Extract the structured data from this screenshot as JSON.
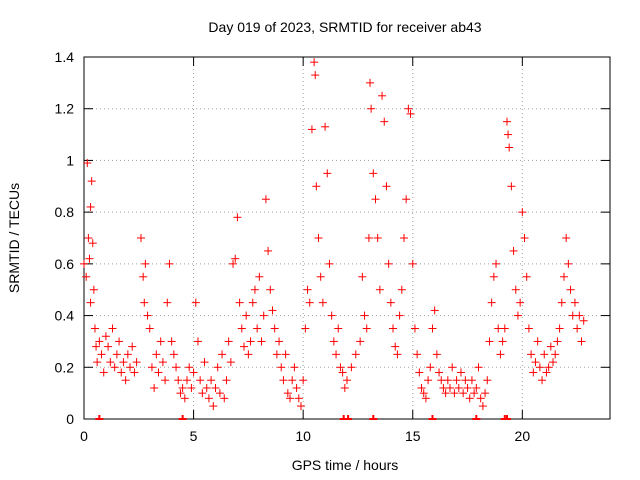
{
  "chart_data": {
    "type": "scatter",
    "title": "Day 019 of 2023, SRMTID for receiver ab43",
    "xlabel": "GPS time / hours",
    "ylabel": "SRMTID / TECUs",
    "xlim": [
      0,
      24
    ],
    "ylim": [
      0,
      1.4
    ],
    "xticks": [
      0,
      5,
      10,
      15,
      20
    ],
    "xtick_labels": [
      "0",
      "5",
      "10",
      "15",
      "20"
    ],
    "yticks": [
      0,
      0.2,
      0.4,
      0.6,
      0.8,
      1.0,
      1.2,
      1.4
    ],
    "ytick_labels": [
      "0",
      "0.2",
      "0.4",
      "0.6",
      "0.8",
      "1",
      "1.2",
      "1.4"
    ],
    "grid": true,
    "marker": "+",
    "color": "#ff0000",
    "series": [
      {
        "name": "SRMTID",
        "points": [
          [
            0.0,
            0.6
          ],
          [
            0.1,
            0.55
          ],
          [
            0.15,
            0.99
          ],
          [
            0.2,
            0.7
          ],
          [
            0.25,
            0.62
          ],
          [
            0.3,
            0.45
          ],
          [
            0.3,
            0.82
          ],
          [
            0.35,
            0.92
          ],
          [
            0.4,
            0.68
          ],
          [
            0.45,
            0.5
          ],
          [
            0.5,
            0.35
          ],
          [
            0.55,
            0.28
          ],
          [
            0.6,
            0.22
          ],
          [
            0.7,
            0.3
          ],
          [
            0.8,
            0.25
          ],
          [
            0.9,
            0.18
          ],
          [
            1.0,
            0.32
          ],
          [
            1.1,
            0.28
          ],
          [
            1.2,
            0.22
          ],
          [
            1.3,
            0.35
          ],
          [
            1.4,
            0.2
          ],
          [
            1.5,
            0.25
          ],
          [
            1.6,
            0.3
          ],
          [
            1.7,
            0.18
          ],
          [
            1.8,
            0.22
          ],
          [
            1.9,
            0.15
          ],
          [
            2.0,
            0.25
          ],
          [
            2.1,
            0.2
          ],
          [
            2.2,
            0.28
          ],
          [
            2.3,
            0.18
          ],
          [
            2.4,
            0.22
          ],
          [
            2.6,
            0.7
          ],
          [
            2.7,
            0.55
          ],
          [
            2.75,
            0.45
          ],
          [
            2.8,
            0.6
          ],
          [
            2.9,
            0.4
          ],
          [
            3.0,
            0.35
          ],
          [
            3.1,
            0.2
          ],
          [
            3.2,
            0.12
          ],
          [
            3.3,
            0.25
          ],
          [
            3.4,
            0.18
          ],
          [
            3.5,
            0.3
          ],
          [
            3.6,
            0.22
          ],
          [
            3.7,
            0.15
          ],
          [
            3.8,
            0.45
          ],
          [
            3.9,
            0.6
          ],
          [
            4.0,
            0.3
          ],
          [
            4.1,
            0.25
          ],
          [
            4.2,
            0.2
          ],
          [
            4.3,
            0.15
          ],
          [
            4.4,
            0.1
          ],
          [
            4.5,
            0.12
          ],
          [
            4.6,
            0.08
          ],
          [
            4.7,
            0.15
          ],
          [
            4.8,
            0.2
          ],
          [
            4.9,
            0.12
          ],
          [
            5.0,
            0.18
          ],
          [
            5.1,
            0.45
          ],
          [
            5.2,
            0.3
          ],
          [
            5.3,
            0.15
          ],
          [
            5.4,
            0.1
          ],
          [
            5.5,
            0.22
          ],
          [
            5.6,
            0.12
          ],
          [
            5.7,
            0.08
          ],
          [
            5.8,
            0.15
          ],
          [
            5.9,
            0.05
          ],
          [
            6.0,
            0.12
          ],
          [
            6.1,
            0.2
          ],
          [
            6.2,
            0.1
          ],
          [
            6.3,
            0.25
          ],
          [
            6.4,
            0.08
          ],
          [
            6.5,
            0.15
          ],
          [
            6.6,
            0.3
          ],
          [
            6.7,
            0.22
          ],
          [
            6.8,
            0.6
          ],
          [
            6.9,
            0.62
          ],
          [
            7.0,
            0.78
          ],
          [
            7.1,
            0.45
          ],
          [
            7.2,
            0.35
          ],
          [
            7.3,
            0.28
          ],
          [
            7.4,
            0.4
          ],
          [
            7.5,
            0.25
          ],
          [
            7.6,
            0.3
          ],
          [
            7.7,
            0.45
          ],
          [
            7.8,
            0.5
          ],
          [
            7.9,
            0.35
          ],
          [
            8.0,
            0.55
          ],
          [
            8.1,
            0.3
          ],
          [
            8.2,
            0.4
          ],
          [
            8.3,
            0.85
          ],
          [
            8.4,
            0.65
          ],
          [
            8.5,
            0.5
          ],
          [
            8.6,
            0.42
          ],
          [
            8.7,
            0.35
          ],
          [
            8.8,
            0.25
          ],
          [
            8.9,
            0.3
          ],
          [
            9.0,
            0.2
          ],
          [
            9.1,
            0.15
          ],
          [
            9.2,
            0.25
          ],
          [
            9.3,
            0.1
          ],
          [
            9.4,
            0.08
          ],
          [
            9.5,
            0.15
          ],
          [
            9.6,
            0.2
          ],
          [
            9.7,
            0.12
          ],
          [
            9.8,
            0.08
          ],
          [
            9.9,
            0.05
          ],
          [
            10.0,
            0.15
          ],
          [
            10.1,
            0.35
          ],
          [
            10.2,
            0.5
          ],
          [
            10.3,
            0.45
          ],
          [
            10.4,
            1.12
          ],
          [
            10.5,
            1.38
          ],
          [
            10.55,
            1.33
          ],
          [
            10.6,
            0.9
          ],
          [
            10.7,
            0.7
          ],
          [
            10.8,
            0.55
          ],
          [
            10.9,
            0.45
          ],
          [
            11.0,
            1.13
          ],
          [
            11.1,
            0.95
          ],
          [
            11.2,
            0.6
          ],
          [
            11.3,
            0.4
          ],
          [
            11.4,
            0.3
          ],
          [
            11.5,
            0.25
          ],
          [
            11.6,
            0.35
          ],
          [
            11.7,
            0.2
          ],
          [
            11.8,
            0.18
          ],
          [
            11.9,
            0.12
          ],
          [
            12.0,
            0.15
          ],
          [
            12.2,
            0.2
          ],
          [
            12.4,
            0.25
          ],
          [
            12.6,
            0.3
          ],
          [
            12.7,
            0.55
          ],
          [
            12.8,
            0.4
          ],
          [
            12.9,
            0.35
          ],
          [
            13.0,
            0.7
          ],
          [
            13.05,
            1.3
          ],
          [
            13.1,
            1.2
          ],
          [
            13.2,
            0.95
          ],
          [
            13.3,
            0.85
          ],
          [
            13.4,
            0.7
          ],
          [
            13.5,
            0.5
          ],
          [
            13.6,
            1.25
          ],
          [
            13.7,
            1.15
          ],
          [
            13.8,
            0.9
          ],
          [
            13.9,
            0.6
          ],
          [
            14.0,
            0.45
          ],
          [
            14.1,
            0.35
          ],
          [
            14.2,
            0.28
          ],
          [
            14.3,
            0.25
          ],
          [
            14.4,
            0.4
          ],
          [
            14.5,
            0.5
          ],
          [
            14.6,
            0.7
          ],
          [
            14.7,
            0.85
          ],
          [
            14.8,
            1.2
          ],
          [
            14.9,
            1.18
          ],
          [
            15.0,
            0.6
          ],
          [
            15.1,
            0.35
          ],
          [
            15.2,
            0.25
          ],
          [
            15.3,
            0.18
          ],
          [
            15.4,
            0.12
          ],
          [
            15.5,
            0.1
          ],
          [
            15.6,
            0.08
          ],
          [
            15.7,
            0.15
          ],
          [
            15.8,
            0.2
          ],
          [
            15.9,
            0.35
          ],
          [
            16.0,
            0.42
          ],
          [
            16.1,
            0.25
          ],
          [
            16.2,
            0.18
          ],
          [
            16.3,
            0.15
          ],
          [
            16.4,
            0.12
          ],
          [
            16.5,
            0.1
          ],
          [
            16.6,
            0.15
          ],
          [
            16.7,
            0.12
          ],
          [
            16.8,
            0.2
          ],
          [
            16.9,
            0.1
          ],
          [
            17.0,
            0.15
          ],
          [
            17.1,
            0.12
          ],
          [
            17.2,
            0.18
          ],
          [
            17.3,
            0.1
          ],
          [
            17.4,
            0.15
          ],
          [
            17.5,
            0.12
          ],
          [
            17.6,
            0.08
          ],
          [
            17.7,
            0.15
          ],
          [
            17.8,
            0.1
          ],
          [
            17.9,
            0.12
          ],
          [
            18.0,
            0.2
          ],
          [
            18.1,
            0.08
          ],
          [
            18.2,
            0.05
          ],
          [
            18.3,
            0.1
          ],
          [
            18.4,
            0.15
          ],
          [
            18.5,
            0.3
          ],
          [
            18.6,
            0.45
          ],
          [
            18.7,
            0.55
          ],
          [
            18.8,
            0.6
          ],
          [
            18.9,
            0.35
          ],
          [
            19.0,
            0.25
          ],
          [
            19.1,
            0.3
          ],
          [
            19.2,
            0.35
          ],
          [
            19.3,
            1.15
          ],
          [
            19.35,
            1.1
          ],
          [
            19.4,
            1.05
          ],
          [
            19.5,
            0.9
          ],
          [
            19.6,
            0.65
          ],
          [
            19.7,
            0.5
          ],
          [
            19.8,
            0.4
          ],
          [
            19.9,
            0.45
          ],
          [
            20.0,
            0.8
          ],
          [
            20.1,
            0.7
          ],
          [
            20.2,
            0.55
          ],
          [
            20.3,
            0.35
          ],
          [
            20.4,
            0.25
          ],
          [
            20.5,
            0.18
          ],
          [
            20.6,
            0.22
          ],
          [
            20.7,
            0.3
          ],
          [
            20.8,
            0.2
          ],
          [
            20.9,
            0.15
          ],
          [
            21.0,
            0.25
          ],
          [
            21.1,
            0.18
          ],
          [
            21.2,
            0.2
          ],
          [
            21.3,
            0.28
          ],
          [
            21.4,
            0.22
          ],
          [
            21.5,
            0.25
          ],
          [
            21.6,
            0.3
          ],
          [
            21.7,
            0.35
          ],
          [
            21.8,
            0.45
          ],
          [
            21.9,
            0.55
          ],
          [
            22.0,
            0.7
          ],
          [
            22.1,
            0.6
          ],
          [
            22.2,
            0.5
          ],
          [
            22.3,
            0.4
          ],
          [
            22.4,
            0.45
          ],
          [
            22.5,
            0.35
          ],
          [
            22.6,
            0.4
          ],
          [
            22.7,
            0.3
          ],
          [
            22.8,
            0.38
          ]
        ],
        "zero_points": [
          0.7,
          4.5,
          11.85,
          12.05,
          13.2,
          15.9,
          17.9,
          19.2,
          19.3
        ]
      }
    ]
  }
}
